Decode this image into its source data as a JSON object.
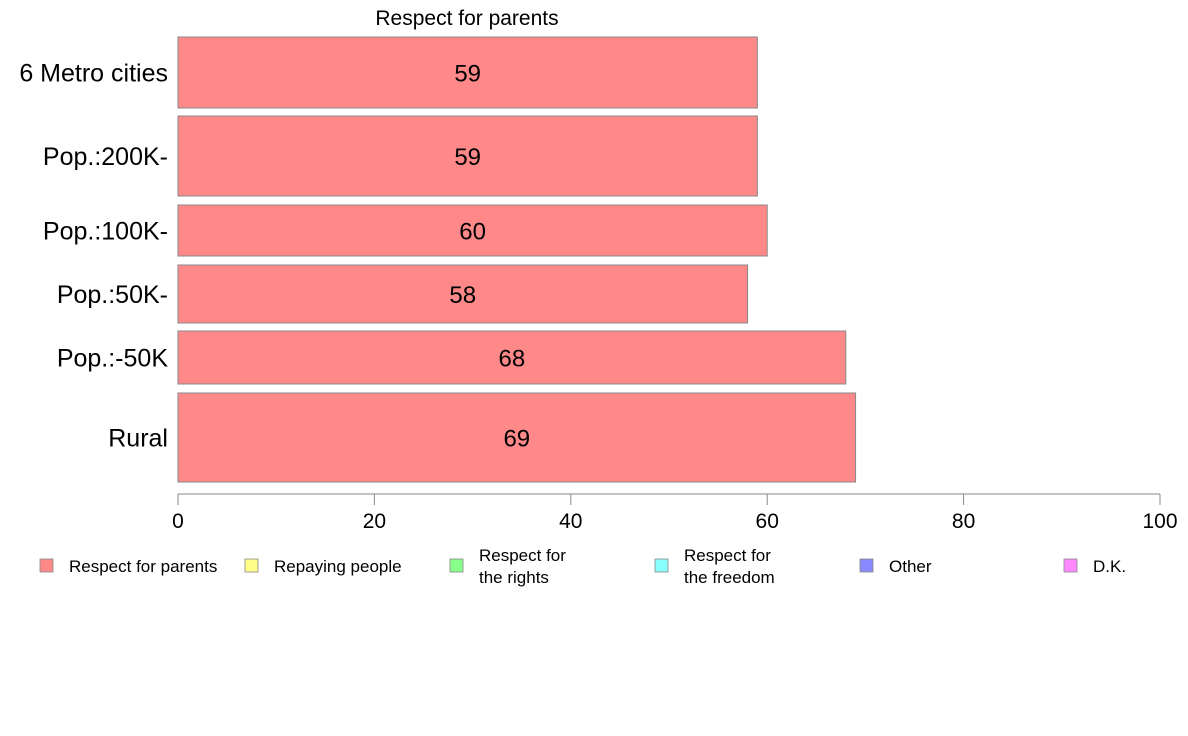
{
  "chart_data": {
    "type": "bar",
    "orientation": "horizontal",
    "title": "Respect for parents",
    "xlabel": "",
    "ylabel": "",
    "categories": [
      "6 Metro cities",
      "Pop.:200K-",
      "Pop.:100K-",
      "Pop.:50K-",
      "Pop.:-50K",
      "Rural"
    ],
    "series": [
      {
        "name": "Respect for parents",
        "values": [
          59,
          59,
          60,
          58,
          68,
          69
        ],
        "value_labels": [
          "59",
          "59",
          "60",
          "58",
          "68",
          "69"
        ]
      }
    ],
    "xlim": [
      0,
      100
    ],
    "x_ticks": [
      "0",
      "20",
      "40",
      "60",
      "80",
      "100"
    ],
    "grid": false,
    "legend_position": "bottom",
    "legend": [
      {
        "label_lines": [
          "Respect for parents"
        ],
        "color": "#ff8888"
      },
      {
        "label_lines": [
          "Repaying people"
        ],
        "color": "#ffff88"
      },
      {
        "label_lines": [
          "Respect for",
          "the rights"
        ],
        "color": "#88ff88"
      },
      {
        "label_lines": [
          "Respect for",
          "the freedom"
        ],
        "color": "#88ffff"
      },
      {
        "label_lines": [
          "Other"
        ],
        "color": "#8888ff"
      },
      {
        "label_lines": [
          "D.K."
        ],
        "color": "#ff88ff"
      }
    ],
    "bar_color": "#ff8888",
    "bar_stroke": "#888888"
  }
}
